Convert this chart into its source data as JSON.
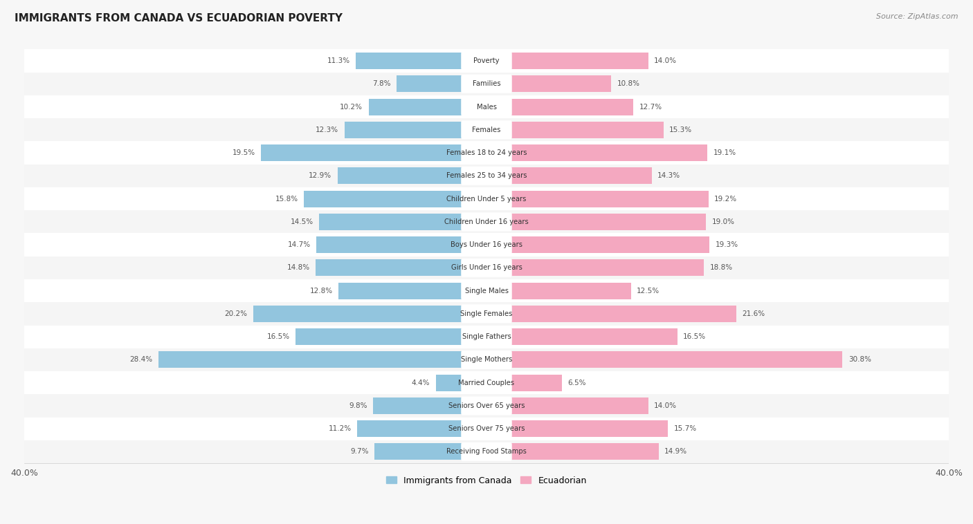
{
  "title": "IMMIGRANTS FROM CANADA VS ECUADORIAN POVERTY",
  "source": "Source: ZipAtlas.com",
  "categories": [
    "Poverty",
    "Families",
    "Males",
    "Females",
    "Females 18 to 24 years",
    "Females 25 to 34 years",
    "Children Under 5 years",
    "Children Under 16 years",
    "Boys Under 16 years",
    "Girls Under 16 years",
    "Single Males",
    "Single Females",
    "Single Fathers",
    "Single Mothers",
    "Married Couples",
    "Seniors Over 65 years",
    "Seniors Over 75 years",
    "Receiving Food Stamps"
  ],
  "canada_values": [
    11.3,
    7.8,
    10.2,
    12.3,
    19.5,
    12.9,
    15.8,
    14.5,
    14.7,
    14.8,
    12.8,
    20.2,
    16.5,
    28.4,
    4.4,
    9.8,
    11.2,
    9.7
  ],
  "ecuador_values": [
    14.0,
    10.8,
    12.7,
    15.3,
    19.1,
    14.3,
    19.2,
    19.0,
    19.3,
    18.8,
    12.5,
    21.6,
    16.5,
    30.8,
    6.5,
    14.0,
    15.7,
    14.9
  ],
  "canada_color": "#92c5de",
  "ecuador_color": "#f4a8c0",
  "row_color_odd": "#f5f5f5",
  "row_color_even": "#ffffff",
  "bar_background": "#e8e8e8",
  "label_bg": "#ffffff",
  "x_max": 40.0,
  "legend_canada": "Immigrants from Canada",
  "legend_ecuador": "Ecuadorian",
  "value_color": "#555555",
  "title_color": "#222222",
  "source_color": "#888888"
}
